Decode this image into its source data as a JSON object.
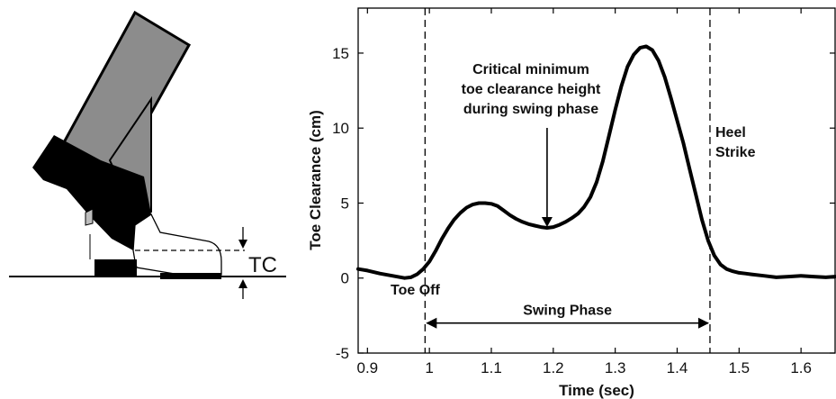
{
  "illustration": {
    "tc_label": "TC"
  },
  "chart_data": {
    "type": "line",
    "title": "",
    "xlabel": "Time (sec)",
    "ylabel": "Toe Clearance (cm)",
    "xlim": [
      0.885,
      1.655
    ],
    "ylim": [
      -5,
      18
    ],
    "xticks": [
      0.9,
      1,
      1.1,
      1.2,
      1.3,
      1.4,
      1.5,
      1.6
    ],
    "xtick_labels": [
      "0.9",
      "1",
      "1.1",
      "1.2",
      "1.3",
      "1.4",
      "1.5",
      "1.6"
    ],
    "yticks": [
      -5,
      0,
      5,
      10,
      15
    ],
    "ytick_labels": [
      "-5",
      "0",
      "5",
      "10",
      "15"
    ],
    "grid": false,
    "series": [
      {
        "x": [
          0.885,
          0.9,
          0.92,
          0.94,
          0.96,
          0.97,
          0.98,
          0.99,
          1.0,
          1.01,
          1.02,
          1.03,
          1.04,
          1.05,
          1.06,
          1.07,
          1.08,
          1.09,
          1.1,
          1.11,
          1.12,
          1.13,
          1.14,
          1.15,
          1.16,
          1.17,
          1.18,
          1.19,
          1.2,
          1.21,
          1.22,
          1.23,
          1.24,
          1.25,
          1.26,
          1.27,
          1.28,
          1.29,
          1.3,
          1.31,
          1.32,
          1.33,
          1.34,
          1.35,
          1.36,
          1.37,
          1.38,
          1.39,
          1.4,
          1.41,
          1.42,
          1.43,
          1.44,
          1.45,
          1.46,
          1.47,
          1.48,
          1.49,
          1.5,
          1.51,
          1.52,
          1.54,
          1.56,
          1.58,
          1.6,
          1.62,
          1.64,
          1.655
        ],
        "values": [
          0.6,
          0.5,
          0.3,
          0.15,
          0.0,
          0.05,
          0.25,
          0.6,
          1.1,
          1.8,
          2.6,
          3.3,
          3.9,
          4.35,
          4.7,
          4.9,
          5.0,
          5.0,
          4.95,
          4.8,
          4.5,
          4.2,
          3.95,
          3.75,
          3.6,
          3.5,
          3.4,
          3.35,
          3.4,
          3.55,
          3.75,
          4.0,
          4.3,
          4.75,
          5.4,
          6.4,
          7.8,
          9.5,
          11.2,
          12.8,
          14.1,
          14.9,
          15.35,
          15.45,
          15.2,
          14.5,
          13.4,
          12.0,
          10.5,
          9.0,
          7.3,
          5.6,
          3.9,
          2.5,
          1.5,
          0.9,
          0.6,
          0.45,
          0.35,
          0.3,
          0.25,
          0.15,
          0.05,
          0.1,
          0.15,
          0.1,
          0.05,
          0.1
        ]
      }
    ],
    "vlines": [
      0.993,
      1.453
    ],
    "annotations": {
      "critical": [
        "Critical minimum",
        "toe clearance height",
        "during swing phase"
      ],
      "critical_point": [
        1.19,
        3.35
      ],
      "heel_strike": [
        "Heel",
        "Strike"
      ],
      "toe_off": "Toe Off",
      "swing_phase": "Swing Phase",
      "swing_arrow_y": -3.0
    }
  }
}
